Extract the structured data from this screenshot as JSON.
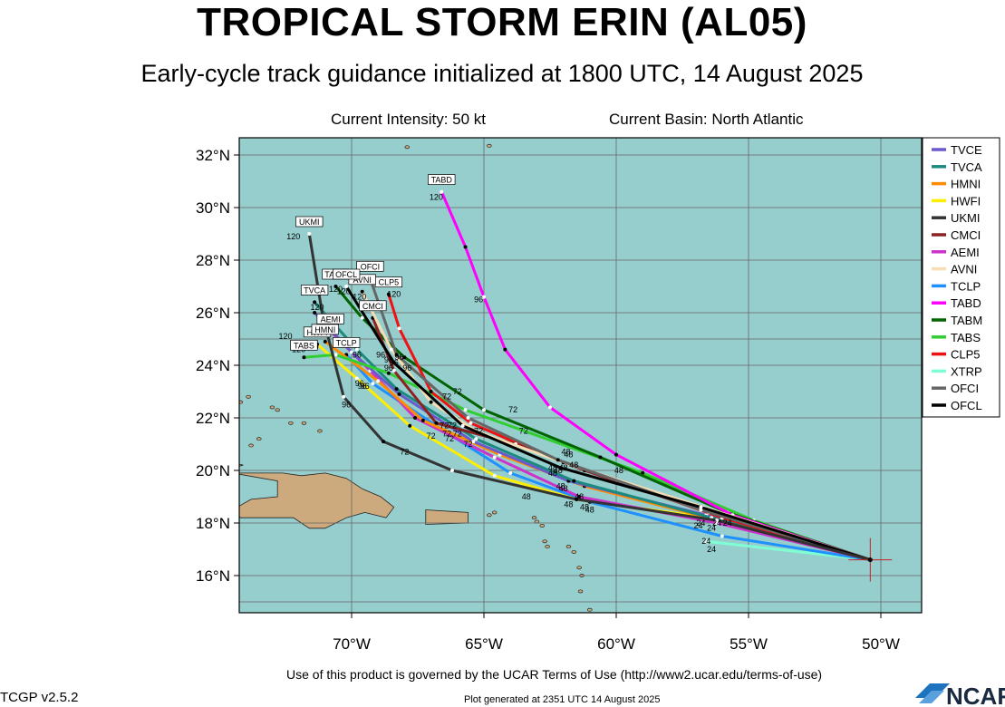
{
  "header": {
    "title": "TROPICAL STORM ERIN (AL05)",
    "subtitle": "Early-cycle track guidance initialized at 1800 UTC, 14 August 2025",
    "intensity": "Current Intensity: 50 kt",
    "basin": "Current Basin: North Atlantic"
  },
  "footer": {
    "terms": "Use of this product is governed by the UCAR Terms of Use (http://www2.ucar.edu/terms-of-use)",
    "version": "TCGP v2.5.2",
    "generated": "Plot generated at 2351 UTC  14 August 2025",
    "logo_text": "NCAR"
  },
  "axes": {
    "lat_labels": [
      "32°N",
      "30°N",
      "28°N",
      "26°N",
      "24°N",
      "22°N",
      "20°N",
      "18°N",
      "16°N"
    ],
    "lon_labels": [
      "70°W",
      "65°W",
      "60°W",
      "55°W",
      "50°W"
    ]
  },
  "colors": {
    "ocean": "#96cdcd",
    "land": "#cdaa7d",
    "storm_marker": "#cc2222"
  },
  "storm_position": {
    "lat": 16.6,
    "lon": -50.4
  },
  "legend": [
    {
      "name": "TVCE",
      "color": "#6a5acd"
    },
    {
      "name": "TVCA",
      "color": "#1c8a7e"
    },
    {
      "name": "HMNI",
      "color": "#ff8c00"
    },
    {
      "name": "HWFI",
      "color": "#ffee00"
    },
    {
      "name": "UKMI",
      "color": "#333333"
    },
    {
      "name": "CMCI",
      "color": "#8b2323"
    },
    {
      "name": "AEMI",
      "color": "#cc33cc"
    },
    {
      "name": "AVNI",
      "color": "#f5deb3"
    },
    {
      "name": "TCLP",
      "color": "#1e90ff"
    },
    {
      "name": "TABD",
      "color": "#ff00ff"
    },
    {
      "name": "TABM",
      "color": "#006400"
    },
    {
      "name": "TABS",
      "color": "#32cd32"
    },
    {
      "name": "CLP5",
      "color": "#ee1111"
    },
    {
      "name": "XTRP",
      "color": "#7fffd4"
    },
    {
      "name": "OFCI",
      "color": "#666666"
    },
    {
      "name": "OFCL",
      "color": "#000000"
    }
  ],
  "tracks": [
    {
      "name": "XTRP",
      "color": "#7fffd4",
      "points": [
        [
          -50.4,
          16.6
        ],
        [
          -56.6,
          17.3
        ]
      ],
      "end_label": "",
      "hours": [
        [
          "24",
          -56.4,
          16.9
        ]
      ]
    },
    {
      "name": "TCLP",
      "color": "#1e90ff",
      "points": [
        [
          -50.4,
          16.6
        ],
        [
          -56,
          17.5
        ],
        [
          -61,
          18.8
        ],
        [
          -64,
          19.9
        ],
        [
          -66.5,
          21.5
        ],
        [
          -69.2,
          23.3
        ],
        [
          -70.2,
          24.4
        ]
      ],
      "end_label": "TCLP",
      "hours": [
        [
          "24",
          -56.6,
          17.2
        ],
        [
          "48",
          -61,
          18.4
        ],
        [
          "72",
          -66.3,
          21.1
        ]
      ]
    },
    {
      "name": "HWFI",
      "color": "#ffee00",
      "points": [
        [
          -50.4,
          16.6
        ],
        [
          -55.8,
          18.1
        ],
        [
          -61.5,
          18.9
        ],
        [
          -64.6,
          19.8
        ],
        [
          -67.8,
          21.7
        ],
        [
          -69.8,
          23.5
        ],
        [
          -71.3,
          24.8
        ]
      ],
      "end_label": "HWFI",
      "hours": [
        [
          "24",
          -56.4,
          17.7
        ],
        [
          "48",
          -61.2,
          18.5
        ],
        [
          "72",
          -67,
          21.2
        ],
        [
          "96",
          -69.6,
          23.1
        ],
        [
          "120",
          -72.5,
          25.0
        ]
      ]
    },
    {
      "name": "AEMI",
      "color": "#cc33cc",
      "points": [
        [
          -50.4,
          16.6
        ],
        [
          -56.2,
          18.0
        ],
        [
          -61.4,
          19.0
        ],
        [
          -64.6,
          20.5
        ],
        [
          -67.6,
          22.0
        ],
        [
          -69.3,
          23.8
        ],
        [
          -70.8,
          25.3
        ]
      ],
      "end_label": "AEMI",
      "hours": [
        [
          "24",
          -56.9,
          17.8
        ],
        [
          "48",
          -61.8,
          18.6
        ],
        [
          "72",
          -66.5,
          21.6
        ],
        [
          "96",
          -69.5,
          23.1
        ],
        [
          "120",
          -71.3,
          25.1
        ]
      ]
    },
    {
      "name": "HMNI",
      "color": "#ff8c00",
      "points": [
        [
          -50.4,
          16.6
        ],
        [
          -56.5,
          18.2
        ],
        [
          -61.2,
          19.4
        ],
        [
          -64.4,
          20.6
        ],
        [
          -67.3,
          21.9
        ],
        [
          -69.0,
          23.4
        ],
        [
          -71.0,
          24.9
        ]
      ],
      "end_label": "HMNI",
      "hours": [
        [
          "24",
          -56.8,
          17.9
        ],
        [
          "48",
          -61.4,
          18.9
        ],
        [
          "72",
          -66.4,
          21.3
        ],
        [
          "96",
          -69.7,
          23.2
        ],
        [
          "120",
          -71.5,
          24.6
        ]
      ]
    },
    {
      "name": "TVCE",
      "color": "#6a5acd",
      "points": [
        [
          -50.4,
          16.6
        ],
        [
          -56.6,
          18.3
        ],
        [
          -61.8,
          19.6
        ],
        [
          -65.4,
          21.1
        ],
        [
          -68.2,
          22.9
        ],
        [
          -70.0,
          24.5
        ],
        [
          -71.4,
          26.0
        ]
      ],
      "end_label": "",
      "hours": [
        [
          "24",
          -56.2,
          17.9
        ],
        [
          "48",
          -62.1,
          19.3
        ],
        [
          "72",
          -65.6,
          20.9
        ]
      ]
    },
    {
      "name": "TVCA",
      "color": "#1c8a7e",
      "points": [
        [
          -50.4,
          16.6
        ],
        [
          -56.4,
          18.2
        ],
        [
          -61.6,
          19.6
        ],
        [
          -65.3,
          21.2
        ],
        [
          -68.3,
          23.1
        ],
        [
          -69.8,
          24.6
        ],
        [
          -71.4,
          26.4
        ]
      ],
      "end_label": "TVCA",
      "hours": [
        [
          "24",
          -55.8,
          17.9
        ],
        [
          "48",
          -62.0,
          19.2
        ],
        [
          "120",
          -71.3,
          26.1
        ]
      ]
    },
    {
      "name": "TABS",
      "color": "#32cd32",
      "points": [
        [
          -50.4,
          16.6
        ],
        [
          -54.8,
          18.1
        ],
        [
          -59.0,
          19.9
        ],
        [
          -65.7,
          22.3
        ],
        [
          -68.6,
          23.7
        ],
        [
          -70.6,
          24.4
        ],
        [
          -71.8,
          24.3
        ]
      ],
      "end_label": "TABS",
      "hours": [
        [
          "48",
          -59.9,
          19.9
        ],
        [
          "72",
          -66,
          22.9
        ],
        [
          "96",
          -69.8,
          24.3
        ],
        [
          "120",
          -72.0,
          24.5
        ]
      ]
    },
    {
      "name": "TABM",
      "color": "#006400",
      "points": [
        [
          -50.4,
          16.6
        ],
        [
          -55.8,
          18.4
        ],
        [
          -60.6,
          20.5
        ],
        [
          -65.0,
          22.3
        ],
        [
          -68.0,
          24.3
        ],
        [
          -69.6,
          25.8
        ],
        [
          -70.6,
          27.0
        ]
      ],
      "end_label": "TABM",
      "hours": [
        [
          "48",
          -61.9,
          20.6
        ],
        [
          "72",
          -66.4,
          22.7
        ],
        [
          "96",
          -68.4,
          24.0
        ],
        [
          "120",
          -70.6,
          26.8
        ]
      ]
    },
    {
      "name": "TABD",
      "color": "#ff00ff",
      "points": [
        [
          -50.4,
          16.6
        ],
        [
          -55.6,
          18.3
        ],
        [
          -60.0,
          20.6
        ],
        [
          -62.5,
          22.4
        ],
        [
          -64.2,
          24.6
        ],
        [
          -65.0,
          26.6
        ],
        [
          -65.7,
          28.5
        ],
        [
          -66.6,
          30.6
        ]
      ],
      "end_label": "TABD",
      "hours": [
        [
          "48",
          -61.8,
          20.5
        ],
        [
          "72",
          -63.9,
          22.2
        ],
        [
          "96",
          -65.2,
          26.4
        ],
        [
          "120",
          -66.8,
          30.3
        ]
      ]
    },
    {
      "name": "CLP5",
      "color": "#ee1111",
      "points": [
        [
          -50.4,
          16.6
        ],
        [
          -56.0,
          18.2
        ],
        [
          -62.5,
          20.5
        ],
        [
          -65.5,
          21.8
        ],
        [
          -67.0,
          23.0
        ],
        [
          -68.2,
          25.4
        ],
        [
          -68.6,
          26.7
        ]
      ],
      "end_label": "CLP5",
      "hours": [
        [
          "48",
          -62.2,
          19.9
        ],
        [
          "72",
          -65.2,
          21.4
        ],
        [
          "96",
          -67.9,
          23.8
        ],
        [
          "120",
          -68.4,
          26.6
        ]
      ]
    },
    {
      "name": "CMCI",
      "color": "#8b2323",
      "points": [
        [
          -50.4,
          16.6
        ],
        [
          -56.5,
          18.4
        ],
        [
          -61.2,
          20.0
        ],
        [
          -63.8,
          21.0
        ],
        [
          -66.8,
          21.8
        ],
        [
          -68.4,
          23.8
        ],
        [
          -69.2,
          25.8
        ]
      ],
      "end_label": "CMCI",
      "hours": [
        [
          "48",
          -61.6,
          20.1
        ],
        [
          "72",
          -63.5,
          21.4
        ],
        [
          "96",
          -68.6,
          23.8
        ],
        [
          "120",
          -69.1,
          26.2
        ]
      ]
    },
    {
      "name": "AVNI",
      "color": "#f5deb3",
      "points": [
        [
          -50.4,
          16.6
        ],
        [
          -56.7,
          18.6
        ],
        [
          -62.0,
          20.3
        ],
        [
          -65.3,
          21.5
        ],
        [
          -67.0,
          22.6
        ],
        [
          -68.5,
          24.6
        ],
        [
          -69.6,
          26.8
        ]
      ],
      "end_label": "AVNI",
      "hours": [
        [
          "48",
          -62.4,
          20.0
        ],
        [
          "96",
          -68.9,
          24.3
        ],
        [
          "120",
          -69.7,
          26.5
        ]
      ]
    },
    {
      "name": "OFCI",
      "color": "#666666",
      "points": [
        [
          -50.4,
          16.6
        ],
        [
          -56.8,
          18.5
        ],
        [
          -62.2,
          20.4
        ],
        [
          -65.6,
          22.0
        ],
        [
          -68.3,
          24.4
        ],
        [
          -69.3,
          27.3
        ]
      ],
      "end_label": "OFCI",
      "hours": [
        [
          "48",
          -62.0,
          20.0
        ],
        [
          "72",
          -66.2,
          21.6
        ],
        [
          "96",
          -68.2,
          24.2
        ],
        [
          "120",
          -69.4,
          27.1
        ]
      ]
    },
    {
      "name": "OFCL",
      "color": "#000000",
      "points": [
        [
          -50.4,
          16.6
        ],
        [
          -56.8,
          18.6
        ],
        [
          -62.1,
          20.1
        ],
        [
          -65.8,
          21.7
        ],
        [
          -68.4,
          24.1
        ],
        [
          -70.2,
          27.0
        ]
      ],
      "end_label": "OFCL",
      "hours": [
        [
          "48",
          -62.4,
          19.8
        ],
        [
          "72",
          -66.0,
          21.3
        ],
        [
          "96",
          -68.6,
          24.1
        ],
        [
          "120",
          -70.3,
          26.7
        ]
      ]
    },
    {
      "name": "UKMI",
      "color": "#333333",
      "points": [
        [
          -50.4,
          16.6
        ],
        [
          -56.2,
          18.1
        ],
        [
          -61.5,
          18.9
        ],
        [
          -66.2,
          20.0
        ],
        [
          -68.8,
          21.1
        ],
        [
          -70.3,
          22.8
        ],
        [
          -71.1,
          25.9
        ],
        [
          -71.6,
          29.0
        ]
      ],
      "end_label": "UKMI",
      "hours": [
        [
          "48",
          -63.4,
          18.9
        ],
        [
          "72",
          -68.0,
          20.6
        ],
        [
          "96",
          -70.2,
          22.4
        ],
        [
          "120",
          -72.2,
          28.8
        ]
      ]
    }
  ]
}
